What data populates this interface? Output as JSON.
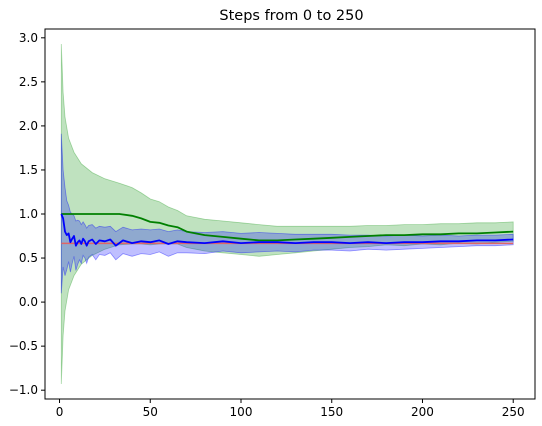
{
  "chart_data": {
    "type": "line",
    "title": "Steps from 0 to 250",
    "xlabel": "",
    "ylabel": "",
    "xlim": [
      -8,
      262
    ],
    "ylim": [
      -1.1,
      3.1
    ],
    "x_ticks": [
      0,
      50,
      100,
      150,
      200,
      250
    ],
    "y_ticks": [
      -1.0,
      -0.5,
      0.0,
      0.5,
      1.0,
      1.5,
      2.0,
      2.5,
      3.0
    ],
    "x_tick_labels": [
      "0",
      "50",
      "100",
      "150",
      "200",
      "250"
    ],
    "y_tick_labels": [
      "−1.0",
      "−0.5",
      "0.0",
      "0.5",
      "1.0",
      "1.5",
      "2.0",
      "2.5",
      "3.0"
    ],
    "grid": false,
    "legend": "none",
    "reference_line": {
      "y": 0.667,
      "color": "#e06666"
    },
    "series": [
      {
        "color": "#008000",
        "band_color": "#2ca02c",
        "band_alpha": 0.3,
        "x": [
          1,
          2,
          3,
          5,
          8,
          12,
          18,
          25,
          33,
          40,
          45,
          50,
          55,
          60,
          65,
          70,
          75,
          80,
          90,
          100,
          110,
          120,
          130,
          140,
          150,
          160,
          170,
          180,
          190,
          200,
          210,
          220,
          230,
          240,
          250
        ],
        "y": [
          1.0,
          1.0,
          1.0,
          1.0,
          1.0,
          1.0,
          1.0,
          1.0,
          1.0,
          0.98,
          0.95,
          0.91,
          0.9,
          0.87,
          0.85,
          0.8,
          0.78,
          0.76,
          0.74,
          0.72,
          0.7,
          0.7,
          0.71,
          0.72,
          0.73,
          0.74,
          0.75,
          0.76,
          0.76,
          0.77,
          0.77,
          0.78,
          0.78,
          0.79,
          0.8
        ],
        "upper": [
          2.93,
          2.38,
          2.1,
          1.86,
          1.7,
          1.57,
          1.47,
          1.4,
          1.35,
          1.3,
          1.24,
          1.17,
          1.14,
          1.08,
          1.04,
          0.98,
          0.96,
          0.94,
          0.92,
          0.9,
          0.88,
          0.86,
          0.86,
          0.86,
          0.86,
          0.86,
          0.87,
          0.87,
          0.88,
          0.88,
          0.89,
          0.89,
          0.9,
          0.9,
          0.91
        ],
        "lower": [
          -0.93,
          -0.38,
          -0.1,
          0.14,
          0.3,
          0.43,
          0.53,
          0.6,
          0.65,
          0.66,
          0.66,
          0.65,
          0.66,
          0.66,
          0.66,
          0.62,
          0.6,
          0.58,
          0.56,
          0.54,
          0.52,
          0.54,
          0.56,
          0.58,
          0.6,
          0.62,
          0.63,
          0.65,
          0.64,
          0.66,
          0.65,
          0.67,
          0.66,
          0.68,
          0.69
        ]
      },
      {
        "color": "#0000ff",
        "band_color": "#0000ff",
        "band_alpha": 0.25,
        "x": [
          1,
          2,
          3,
          4,
          5,
          6,
          7,
          8,
          9,
          10,
          11,
          12,
          13,
          14,
          15,
          16,
          18,
          20,
          22,
          25,
          28,
          31,
          35,
          40,
          45,
          50,
          55,
          60,
          65,
          70,
          80,
          90,
          100,
          110,
          120,
          130,
          140,
          150,
          160,
          170,
          180,
          190,
          200,
          210,
          220,
          230,
          240,
          250
        ],
        "y": [
          1.0,
          0.95,
          0.8,
          0.76,
          0.78,
          0.68,
          0.72,
          0.75,
          0.64,
          0.68,
          0.7,
          0.66,
          0.72,
          0.69,
          0.64,
          0.69,
          0.71,
          0.66,
          0.7,
          0.69,
          0.71,
          0.64,
          0.7,
          0.67,
          0.69,
          0.68,
          0.7,
          0.66,
          0.69,
          0.68,
          0.67,
          0.69,
          0.67,
          0.68,
          0.68,
          0.67,
          0.68,
          0.68,
          0.67,
          0.68,
          0.67,
          0.68,
          0.68,
          0.69,
          0.69,
          0.7,
          0.7,
          0.71
        ],
        "upper": [
          1.91,
          1.5,
          1.3,
          1.15,
          1.1,
          1.02,
          1.0,
          0.98,
          0.92,
          0.93,
          0.92,
          0.88,
          0.91,
          0.88,
          0.84,
          0.87,
          0.88,
          0.84,
          0.86,
          0.85,
          0.86,
          0.8,
          0.85,
          0.82,
          0.83,
          0.82,
          0.83,
          0.8,
          0.82,
          0.8,
          0.79,
          0.8,
          0.78,
          0.79,
          0.78,
          0.77,
          0.77,
          0.77,
          0.76,
          0.76,
          0.75,
          0.76,
          0.75,
          0.76,
          0.75,
          0.76,
          0.76,
          0.77
        ],
        "lower": [
          0.1,
          0.4,
          0.3,
          0.37,
          0.46,
          0.34,
          0.44,
          0.52,
          0.36,
          0.43,
          0.48,
          0.44,
          0.53,
          0.5,
          0.44,
          0.51,
          0.54,
          0.48,
          0.54,
          0.53,
          0.56,
          0.48,
          0.55,
          0.52,
          0.55,
          0.54,
          0.57,
          0.52,
          0.56,
          0.56,
          0.55,
          0.58,
          0.56,
          0.57,
          0.58,
          0.57,
          0.59,
          0.59,
          0.58,
          0.6,
          0.59,
          0.6,
          0.61,
          0.62,
          0.63,
          0.64,
          0.64,
          0.65
        ]
      }
    ]
  }
}
